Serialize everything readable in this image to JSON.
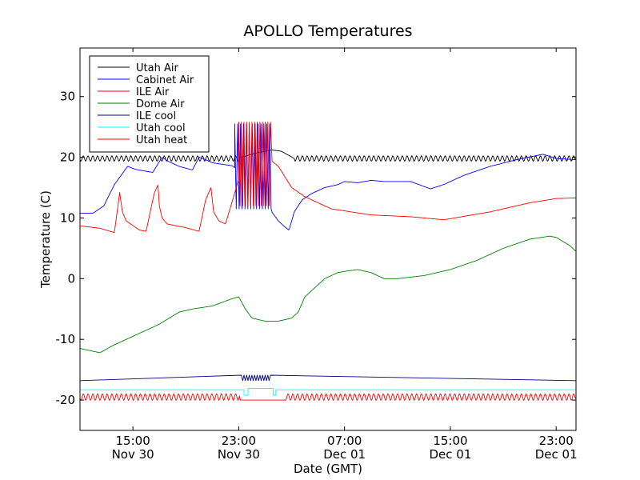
{
  "chart_data": {
    "type": "line",
    "title": "APOLLO Temperatures",
    "xlabel": "Date (GMT)",
    "ylabel": "Temperature (C)",
    "x_unit": "hours since Nov 30 00:00 GMT",
    "xlim": [
      11,
      48.5
    ],
    "ylim": [
      -25,
      38
    ],
    "grid": false,
    "legend_position": "upper-left",
    "y_ticks": [
      {
        "value": 30,
        "label": "30"
      },
      {
        "value": 20,
        "label": "20"
      },
      {
        "value": 10,
        "label": "10"
      },
      {
        "value": 0,
        "label": "0"
      },
      {
        "value": -10,
        "label": "-10"
      },
      {
        "value": -20,
        "label": "-20"
      }
    ],
    "x_ticks": [
      {
        "value": 15,
        "label_time": "15:00",
        "label_date": "Nov 30"
      },
      {
        "value": 23,
        "label_time": "23:00",
        "label_date": "Nov 30"
      },
      {
        "value": 31,
        "label_time": "07:00",
        "label_date": "Dec 01"
      },
      {
        "value": 39,
        "label_time": "15:00",
        "label_date": "Dec 01"
      },
      {
        "value": 47,
        "label_time": "23:00",
        "label_date": "Dec 01"
      }
    ],
    "series": [
      {
        "name": "Utah Air",
        "color": "#000000",
        "style": "line",
        "x": [
          11,
          23,
          23.5,
          24.5,
          25.5,
          26.2,
          26.8,
          27.2,
          48.5
        ],
        "y": [
          19.8,
          19.8,
          20.2,
          20.8,
          21.2,
          21.0,
          20.3,
          19.8,
          19.8
        ],
        "oscillation": {
          "amplitude": 0.45,
          "period": 0.18,
          "ranges": [
            [
              11,
              23
            ],
            [
              27.2,
              48.5
            ]
          ]
        }
      },
      {
        "name": "Cabinet Air",
        "color": "#0000ff",
        "style": "line",
        "x": [
          11,
          12,
          12.8,
          13.6,
          14.6,
          15.2,
          16.5,
          17.2,
          17.7,
          18.5,
          19.5,
          20.0,
          20.5,
          21.0,
          22.5,
          23.0,
          23.4,
          24.0,
          24.5,
          25.0,
          25.5,
          26.0,
          26.5,
          26.8,
          27.2,
          27.8,
          28.5,
          29.5,
          30.5,
          31.0,
          32.0,
          33.0,
          34.0,
          36.0,
          37.0,
          37.5,
          38.5,
          40.0,
          42.0,
          44.0,
          46.0,
          47.0,
          48.5
        ],
        "y": [
          10.8,
          10.8,
          12.0,
          15.5,
          18.5,
          18.0,
          17.5,
          20.0,
          19.3,
          18.5,
          17.9,
          20.0,
          19.6,
          19.1,
          18.6,
          17.8,
          21.0,
          24.0,
          22.0,
          15.0,
          11.0,
          9.5,
          8.5,
          8.0,
          11.0,
          13.0,
          14.0,
          15.0,
          15.5,
          16.0,
          15.8,
          16.2,
          16.0,
          16.0,
          15.2,
          14.8,
          15.5,
          17.0,
          18.5,
          19.6,
          20.5,
          19.8,
          19.6
        ],
        "spikes": {
          "range": [
            22.7,
            25.5
          ],
          "low": 11.5,
          "high": 25.5,
          "period": 0.22
        }
      },
      {
        "name": "ILE Air",
        "color": "#ff0000",
        "style": "line",
        "x": [
          11,
          12.5,
          13.6,
          13.9,
          14.0,
          14.2,
          14.5,
          15.5,
          16.0,
          16.6,
          16.9,
          17.0,
          17.2,
          17.6,
          19.0,
          20.0,
          20.5,
          20.9,
          21.1,
          21.5,
          22.0,
          23.5,
          24.0,
          26.0,
          27.0,
          28.0,
          30.0,
          33.0,
          36.0,
          38.5,
          42.0,
          45.0,
          47.0,
          48.5
        ],
        "y": [
          8.7,
          8.3,
          7.6,
          12.5,
          14.2,
          11.0,
          9.5,
          8.0,
          7.8,
          14.0,
          15.5,
          12.0,
          10.0,
          9.0,
          8.4,
          7.8,
          13.0,
          15.0,
          11.0,
          9.5,
          9.0,
          20.0,
          22.0,
          18.5,
          15.0,
          13.5,
          11.5,
          10.5,
          10.2,
          9.7,
          11.0,
          12.5,
          13.2,
          13.3
        ],
        "spikes": {
          "range": [
            23.0,
            25.5
          ],
          "low": 12.0,
          "high": 25.8,
          "period": 0.2
        }
      },
      {
        "name": "Dome Air",
        "color": "#008000",
        "style": "line",
        "x": [
          11,
          12.5,
          13.5,
          15.0,
          17.0,
          18.5,
          19.5,
          21.0,
          22.5,
          23.0,
          23.5,
          24.0,
          25.0,
          26.0,
          27.0,
          27.5,
          28.0,
          29.0,
          29.5,
          30.5,
          31.0,
          32.0,
          33.0,
          34.0,
          35.0,
          37.0,
          39.0,
          41.0,
          43.0,
          45.0,
          46.5,
          47.0,
          48.0,
          48.5
        ],
        "y": [
          -11.5,
          -12.2,
          -11.0,
          -9.5,
          -7.5,
          -5.5,
          -5.0,
          -4.5,
          -3.3,
          -3.0,
          -5.0,
          -6.5,
          -7.0,
          -7.0,
          -6.5,
          -5.5,
          -3.0,
          -1.0,
          0.0,
          1.0,
          1.2,
          1.5,
          1.0,
          0.0,
          0.0,
          0.5,
          1.5,
          3.0,
          5.0,
          6.5,
          7.0,
          6.8,
          5.5,
          4.5
        ]
      },
      {
        "name": "ILE cool",
        "color": "#000080",
        "style": "step",
        "x": [
          11,
          23.2,
          23.2,
          25.5,
          25.5,
          48.5
        ],
        "y": [
          -16.8,
          -16.8,
          -15.9,
          -15.9,
          -16.8,
          -16.8
        ],
        "spikes": {
          "range": [
            23.2,
            25.5
          ],
          "low": -16.8,
          "high": -15.9,
          "period": 0.2
        }
      },
      {
        "name": "Utah cool",
        "color": "#00ffff",
        "style": "step",
        "x": [
          11,
          23.4,
          23.4,
          23.7,
          23.7,
          25.6,
          25.6,
          25.8,
          25.8,
          48.5
        ],
        "y": [
          -18.3,
          -18.3,
          -19.2,
          -19.2,
          -18.1,
          -18.1,
          -19.2,
          -19.2,
          -18.3,
          -18.3
        ]
      },
      {
        "name": "Utah heat",
        "color": "#ff0000",
        "style": "line",
        "x": [
          11,
          23.1,
          23.1,
          26.5,
          26.5,
          48.5
        ],
        "y": [
          -19.5,
          -19.5,
          -20.0,
          -20.0,
          -19.5,
          -19.5
        ],
        "oscillation": {
          "amplitude": 0.55,
          "period": 0.18,
          "ranges": [
            [
              11,
              23.1
            ],
            [
              26.5,
              48.5
            ]
          ]
        }
      }
    ]
  }
}
